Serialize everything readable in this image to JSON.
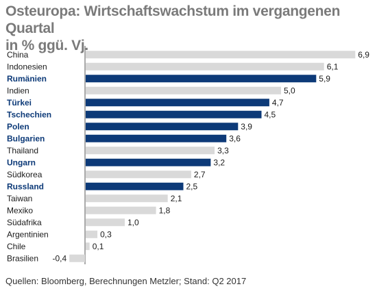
{
  "title_line1": "Osteuropa: Wirtschaftswachstum im vergangenen Quartal",
  "title_line2": "in % ggü. Vj.",
  "footer": "Quellen: Bloomberg, Berechnungen Metzler; Stand: Q2 2017",
  "colors": {
    "highlight": "#0d3a78",
    "other": "#d9d9d9",
    "axis": "#555555",
    "highlight_text": "#0d3a78",
    "other_text": "#1a1a1a"
  },
  "chart_data": {
    "type": "bar",
    "orientation": "horizontal",
    "categories": [
      "China",
      "Indonesien",
      "Rumänien",
      "Indien",
      "Türkei",
      "Tschechien",
      "Polen",
      "Bulgarien",
      "Thailand",
      "Ungarn",
      "Südkorea",
      "Russland",
      "Taiwan",
      "Mexiko",
      "Südafrika",
      "Argentinien",
      "Chile",
      "Brasilien"
    ],
    "values": [
      6.9,
      6.1,
      5.9,
      5.0,
      4.7,
      4.5,
      3.9,
      3.6,
      3.3,
      3.2,
      2.7,
      2.5,
      2.1,
      1.8,
      1.0,
      0.3,
      0.1,
      -0.4
    ],
    "value_labels": [
      "6,9",
      "6,1",
      "5,9",
      "5,0",
      "4,7",
      "4,5",
      "3,9",
      "3,6",
      "3,3",
      "3,2",
      "2,7",
      "2,5",
      "2,1",
      "1,8",
      "1,0",
      "0,3",
      "0,1",
      "-0,4"
    ],
    "highlighted": [
      false,
      false,
      true,
      false,
      true,
      true,
      true,
      true,
      false,
      true,
      false,
      true,
      false,
      false,
      false,
      false,
      false,
      false
    ],
    "xlim": [
      -0.4,
      6.9
    ]
  }
}
